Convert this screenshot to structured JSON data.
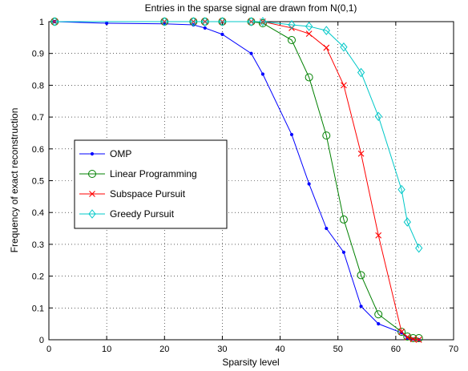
{
  "chart_data": {
    "type": "line",
    "title": "Entries in the sparse signal are drawn from N(0,1)",
    "xlabel": "Sparsity level",
    "ylabel": "Frequency of exact reconstruction",
    "xlim": [
      0,
      70
    ],
    "ylim": [
      0,
      1
    ],
    "xticks": [
      0,
      10,
      20,
      30,
      40,
      50,
      60,
      70
    ],
    "yticks": [
      0,
      0.1,
      0.2,
      0.3,
      0.4,
      0.5,
      0.6,
      0.7,
      0.8,
      0.9,
      1
    ],
    "grid": true,
    "legend_position": "left-middle",
    "series": [
      {
        "name": "OMP",
        "color": "#0000ff",
        "marker": "dot",
        "points": [
          [
            1,
            1
          ],
          [
            10,
            0.995
          ],
          [
            20,
            0.993
          ],
          [
            25,
            0.99
          ],
          [
            27,
            0.98
          ],
          [
            30,
            0.96
          ],
          [
            35,
            0.9
          ],
          [
            37,
            0.835
          ],
          [
            42,
            0.645
          ],
          [
            45,
            0.49
          ],
          [
            48,
            0.35
          ],
          [
            51,
            0.275
          ],
          [
            54,
            0.105
          ],
          [
            57,
            0.05
          ],
          [
            61,
            0.022
          ],
          [
            62,
            0.005
          ],
          [
            63,
            0.002
          ],
          [
            64,
            0.0
          ]
        ]
      },
      {
        "name": "Linear Programming",
        "color": "#008000",
        "marker": "circle",
        "points": [
          [
            1,
            1
          ],
          [
            20,
            1
          ],
          [
            25,
            1
          ],
          [
            27,
            1
          ],
          [
            30,
            1
          ],
          [
            35,
            1
          ],
          [
            37,
            0.995
          ],
          [
            42,
            0.942
          ],
          [
            45,
            0.825
          ],
          [
            48,
            0.642
          ],
          [
            51,
            0.378
          ],
          [
            54,
            0.203
          ],
          [
            57,
            0.08
          ],
          [
            61,
            0.025
          ],
          [
            62,
            0.01
          ],
          [
            63,
            0.005
          ],
          [
            64,
            0.005
          ]
        ]
      },
      {
        "name": "Subspace Pursuit",
        "color": "#ff0000",
        "marker": "x",
        "points": [
          [
            1,
            1
          ],
          [
            20,
            1
          ],
          [
            25,
            1
          ],
          [
            27,
            1
          ],
          [
            30,
            1
          ],
          [
            35,
            1
          ],
          [
            37,
            1
          ],
          [
            42,
            0.98
          ],
          [
            45,
            0.962
          ],
          [
            48,
            0.918
          ],
          [
            51,
            0.8
          ],
          [
            54,
            0.585
          ],
          [
            57,
            0.328
          ],
          [
            61,
            0.025
          ],
          [
            62,
            0.008
          ],
          [
            63,
            0.002
          ],
          [
            64,
            0.0
          ]
        ]
      },
      {
        "name": "Greedy Pursuit",
        "color": "#00c8c8",
        "marker": "diamond",
        "points": [
          [
            1,
            1
          ],
          [
            20,
            1
          ],
          [
            25,
            1
          ],
          [
            27,
            1
          ],
          [
            30,
            1
          ],
          [
            35,
            1
          ],
          [
            37,
            1
          ],
          [
            42,
            0.99
          ],
          [
            45,
            0.985
          ],
          [
            48,
            0.972
          ],
          [
            51,
            0.92
          ],
          [
            54,
            0.84
          ],
          [
            57,
            0.702
          ],
          [
            61,
            0.472
          ],
          [
            62,
            0.37
          ],
          [
            64,
            0.288
          ]
        ]
      }
    ]
  }
}
